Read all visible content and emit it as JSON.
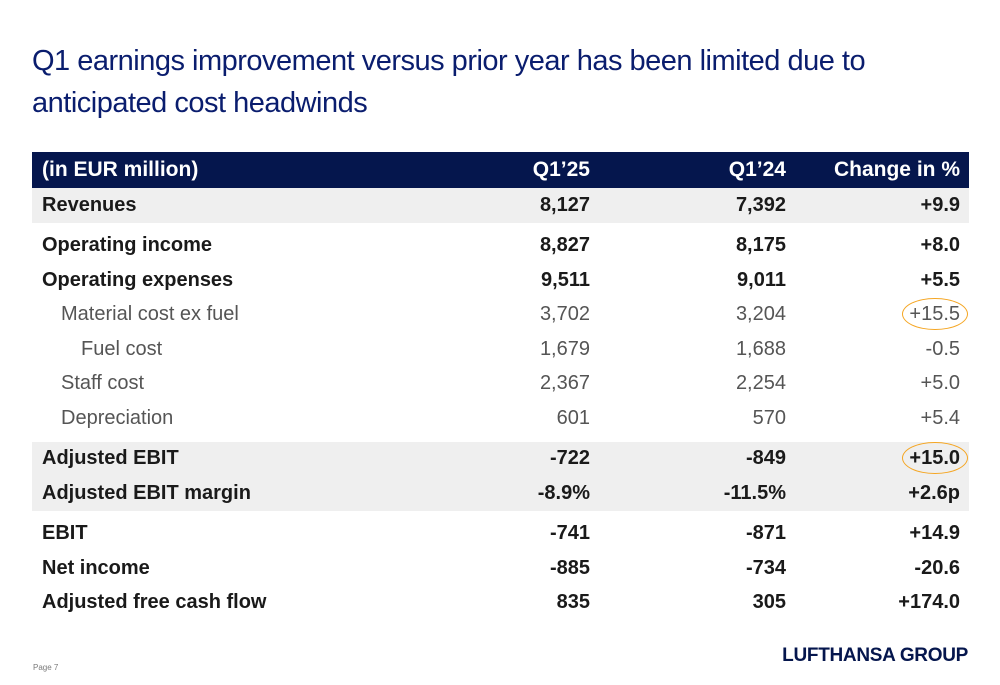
{
  "title": "Q1 earnings improvement versus prior year has been limited due to anticipated cost headwinds",
  "table": {
    "headers": [
      "(in EUR million)",
      "Q1’25",
      "Q1’24",
      "Change in %"
    ],
    "rows": [
      {
        "label": "Revenues",
        "q125": "8,127",
        "q124": "7,392",
        "change": "+9.9"
      },
      {
        "label": "Operating income",
        "q125": "8,827",
        "q124": "8,175",
        "change": "+8.0"
      },
      {
        "label": "Operating expenses",
        "q125": "9,511",
        "q124": "9,011",
        "change": "+5.5"
      },
      {
        "label": "Material cost ex fuel",
        "q125": "3,702",
        "q124": "3,204",
        "change": "+15.5"
      },
      {
        "label": "Fuel cost",
        "q125": "1,679",
        "q124": "1,688",
        "change": "-0.5"
      },
      {
        "label": "Staff cost",
        "q125": "2,367",
        "q124": "2,254",
        "change": "+5.0"
      },
      {
        "label": "Depreciation",
        "q125": "601",
        "q124": "570",
        "change": "+5.4"
      },
      {
        "label": "Adjusted EBIT",
        "q125": "-722",
        "q124": "-849",
        "change": "+15.0"
      },
      {
        "label": "Adjusted EBIT margin",
        "q125": "-8.9%",
        "q124": "-11.5%",
        "change": "+2.6p"
      },
      {
        "label": "EBIT",
        "q125": "-741",
        "q124": "-871",
        "change": "+14.9"
      },
      {
        "label": "Net income",
        "q125": "-885",
        "q124": "-734",
        "change": "-20.6"
      },
      {
        "label": "Adjusted free cash flow",
        "q125": "835",
        "q124": "305",
        "change": "+174.0"
      }
    ]
  },
  "footer": {
    "page": "Page 7",
    "logo": "LUFTHANSA GROUP"
  },
  "colors": {
    "title": "#0a1d6e",
    "header_bg": "#05164d",
    "shaded_row": "#efefef",
    "highlight_circle": "#f5a623"
  }
}
